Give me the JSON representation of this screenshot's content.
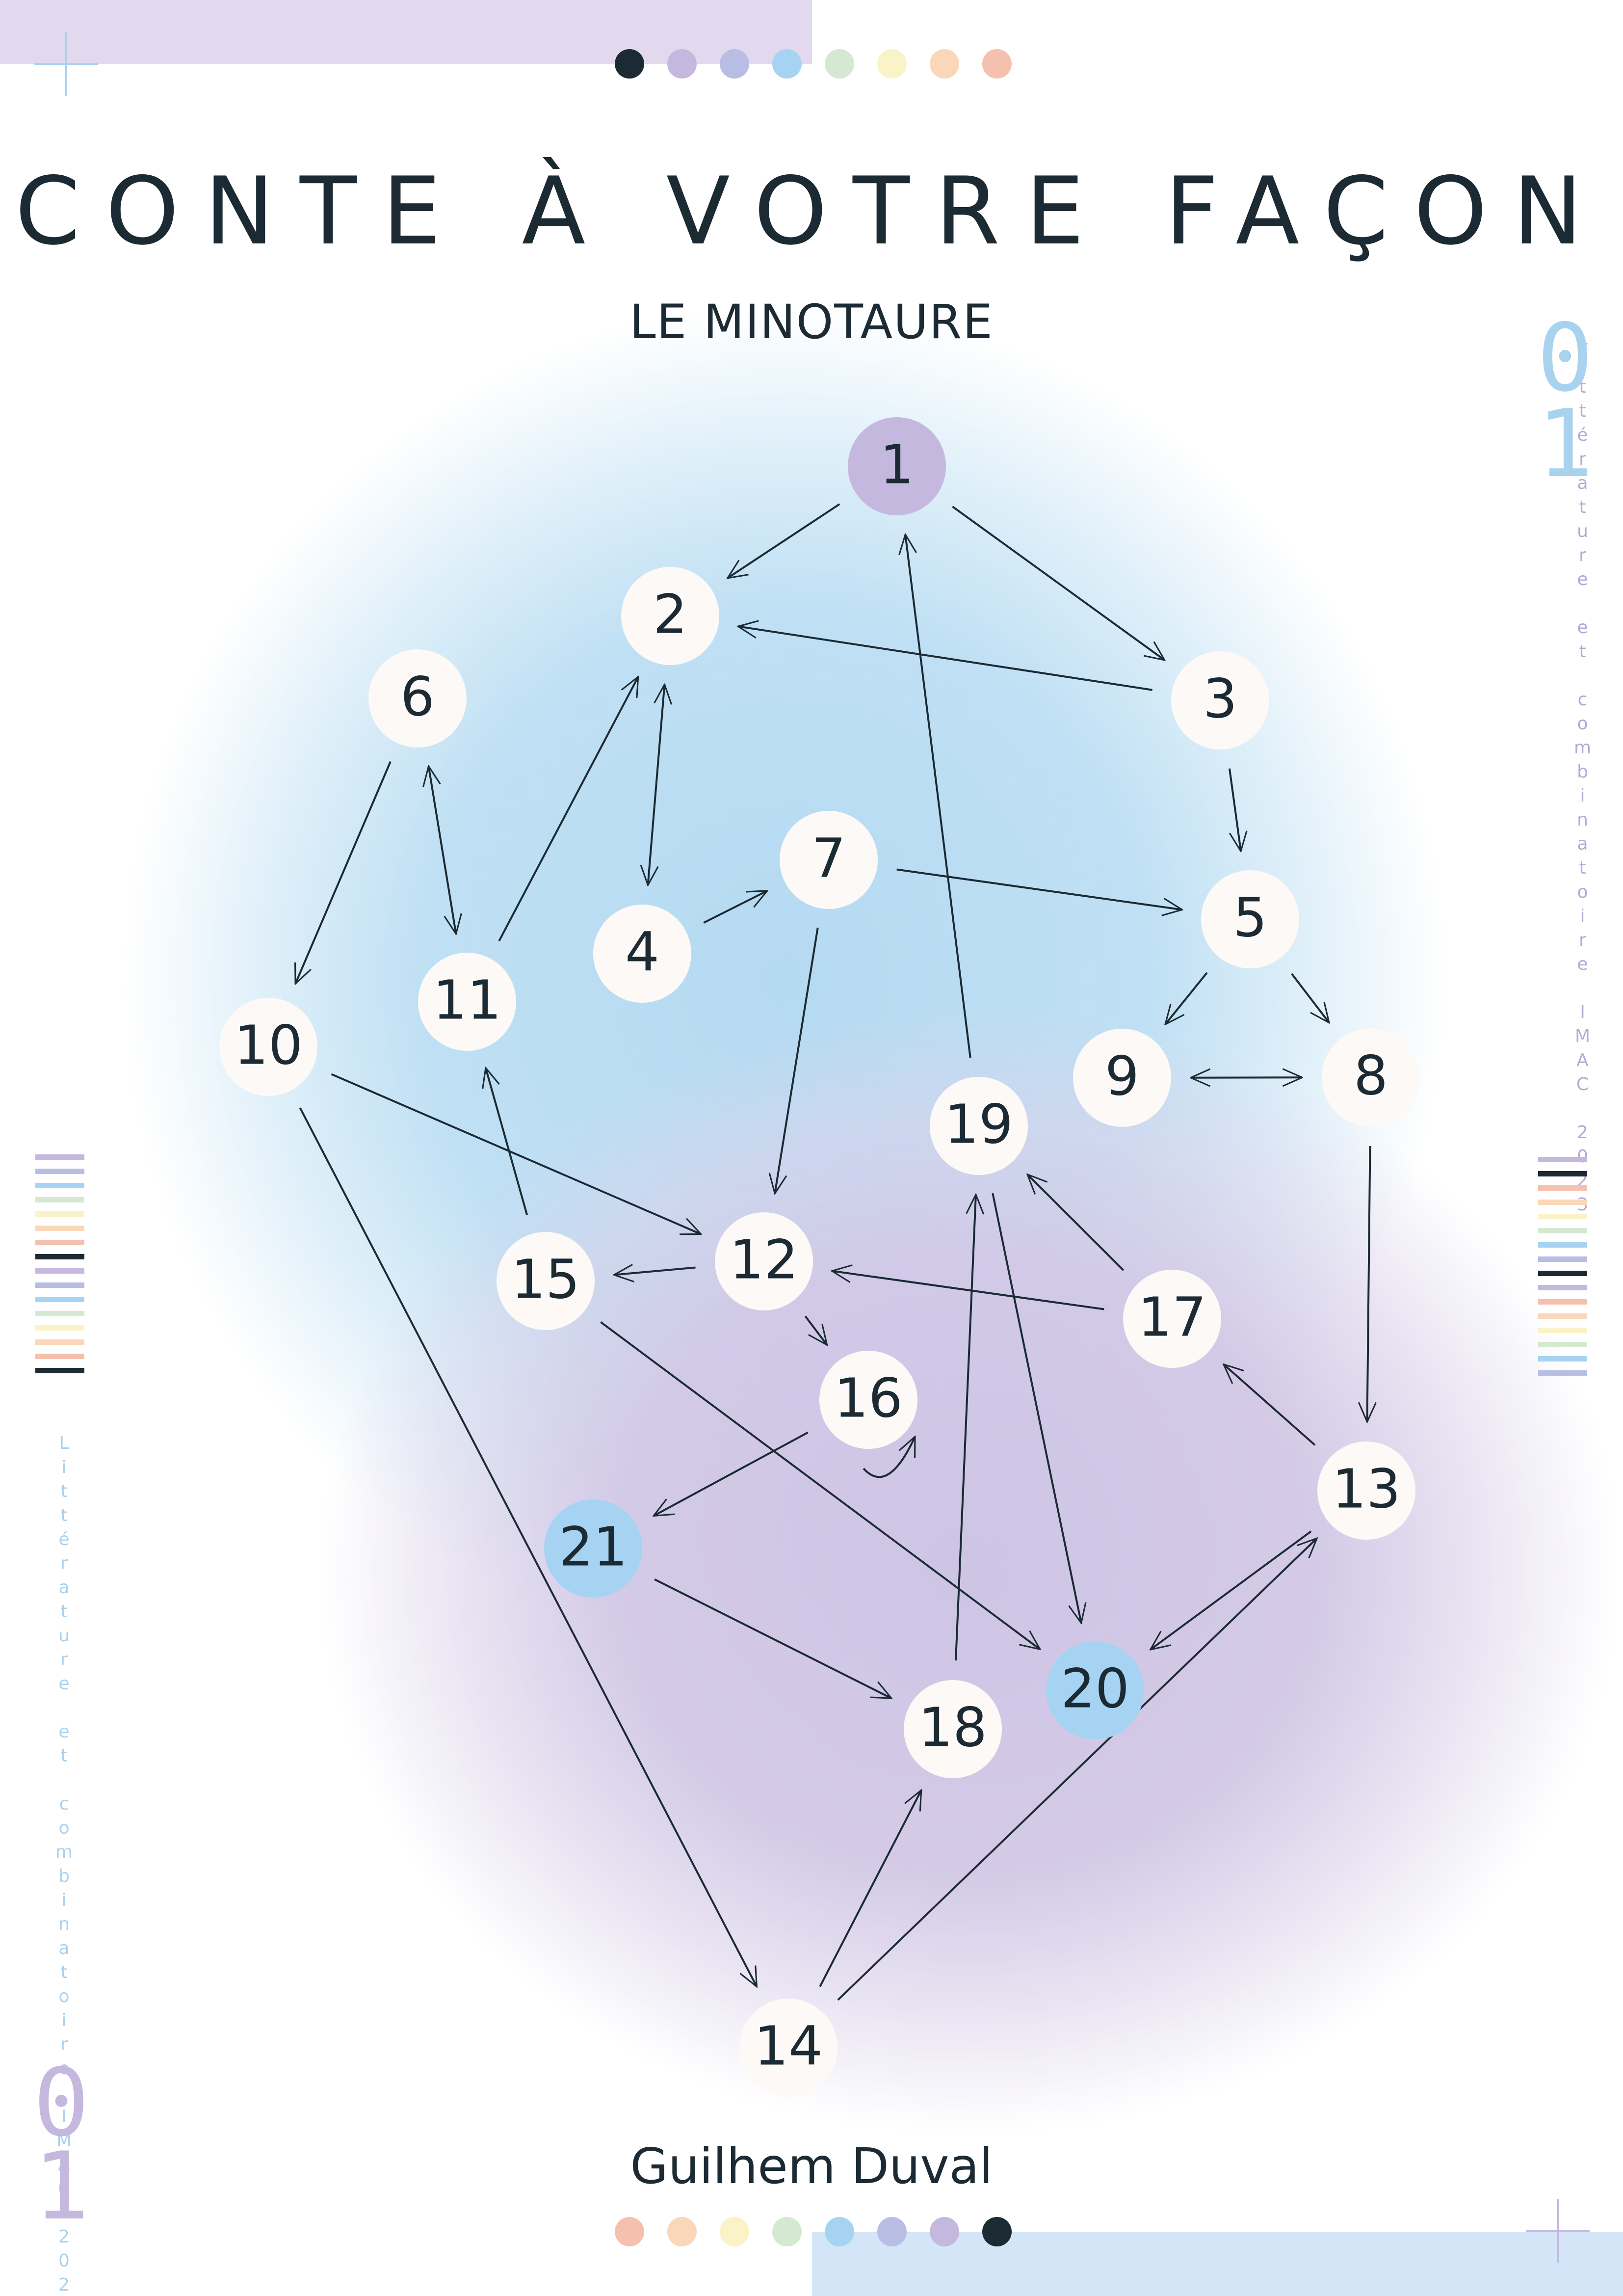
{
  "poster": {
    "title": "CONTE À VOTRE FAÇON",
    "subtitle": "LE MINOTAURE",
    "author": "Guilhem Duval",
    "side_text": "Littérature et combinatoire IMAC 2023",
    "side_number_top": "0",
    "side_number_bottom": "1"
  },
  "palette": {
    "text": "#1b2a33",
    "start_node": "#c5b8de",
    "end_node": "#a7d3f2",
    "node": "#fdf9f7",
    "edge": "#1b2a33"
  },
  "top_dots": [
    "#1b2a33",
    "#c5b8de",
    "#b8bde4",
    "#a7d3f2",
    "#d5e8d2",
    "#faf3c8",
    "#fad7b8",
    "#f6c0ae"
  ],
  "bottom_dots": [
    "#f6c0ae",
    "#fad7b8",
    "#faf3c8",
    "#d5e8d2",
    "#a7d3f2",
    "#b8bde4",
    "#c5b8de",
    "#1b2a33"
  ],
  "stripe_colors_left": [
    "#c5b8de",
    "#b8bde4",
    "#a7d3f2",
    "#d5e8d2",
    "#faf3c8",
    "#fad7b8",
    "#f6c0ae",
    "#1b2a33",
    "#c5b8de",
    "#b8bde4",
    "#a7d3f2",
    "#d5e8d2",
    "#faf3c8",
    "#fad7b8",
    "#f6c0ae",
    "#1b2a33"
  ],
  "stripe_colors_right": [
    "#c5b8de",
    "#1b2a33",
    "#f6c0ae",
    "#fad7b8",
    "#faf3c8",
    "#d5e8d2",
    "#a7d3f2",
    "#b8bde4",
    "#1b2a33",
    "#c5b8de",
    "#f6c0ae",
    "#fad7b8",
    "#faf3c8",
    "#d5e8d2",
    "#a7d3f2",
    "#b8bde4"
  ],
  "graph": {
    "nodes": [
      {
        "id": "1",
        "type": "start"
      },
      {
        "id": "2",
        "type": "normal"
      },
      {
        "id": "3",
        "type": "normal"
      },
      {
        "id": "4",
        "type": "normal"
      },
      {
        "id": "5",
        "type": "normal"
      },
      {
        "id": "6",
        "type": "normal"
      },
      {
        "id": "7",
        "type": "normal"
      },
      {
        "id": "8",
        "type": "normal"
      },
      {
        "id": "9",
        "type": "normal"
      },
      {
        "id": "10",
        "type": "normal"
      },
      {
        "id": "11",
        "type": "normal"
      },
      {
        "id": "12",
        "type": "normal"
      },
      {
        "id": "13",
        "type": "normal"
      },
      {
        "id": "14",
        "type": "normal"
      },
      {
        "id": "15",
        "type": "normal"
      },
      {
        "id": "16",
        "type": "normal"
      },
      {
        "id": "17",
        "type": "normal"
      },
      {
        "id": "18",
        "type": "normal"
      },
      {
        "id": "19",
        "type": "normal"
      },
      {
        "id": "20",
        "type": "end"
      },
      {
        "id": "21",
        "type": "end"
      }
    ],
    "edges": [
      {
        "from": "1",
        "to": "2"
      },
      {
        "from": "1",
        "to": "3"
      },
      {
        "from": "3",
        "to": "2"
      },
      {
        "from": "3",
        "to": "5"
      },
      {
        "from": "2",
        "to": "4",
        "both": true
      },
      {
        "from": "4",
        "to": "7"
      },
      {
        "from": "7",
        "to": "5"
      },
      {
        "from": "7",
        "to": "12"
      },
      {
        "from": "5",
        "to": "9"
      },
      {
        "from": "5",
        "to": "8"
      },
      {
        "from": "9",
        "to": "8",
        "both": true
      },
      {
        "from": "8",
        "to": "13"
      },
      {
        "from": "6",
        "to": "11",
        "both": true
      },
      {
        "from": "6",
        "to": "10"
      },
      {
        "from": "11",
        "to": "2"
      },
      {
        "from": "10",
        "to": "12"
      },
      {
        "from": "10",
        "to": "14"
      },
      {
        "from": "15",
        "to": "11"
      },
      {
        "from": "12",
        "to": "15"
      },
      {
        "from": "12",
        "to": "16"
      },
      {
        "from": "16",
        "to": "21"
      },
      {
        "from": "16",
        "to": "16",
        "loop": true
      },
      {
        "from": "15",
        "to": "20"
      },
      {
        "from": "19",
        "to": "1"
      },
      {
        "from": "19",
        "to": "20"
      },
      {
        "from": "17",
        "to": "19"
      },
      {
        "from": "17",
        "to": "12"
      },
      {
        "from": "13",
        "to": "17"
      },
      {
        "from": "13",
        "to": "20"
      },
      {
        "from": "21",
        "to": "18"
      },
      {
        "from": "18",
        "to": "19"
      },
      {
        "from": "14",
        "to": "18"
      },
      {
        "from": "14",
        "to": "13"
      }
    ]
  }
}
